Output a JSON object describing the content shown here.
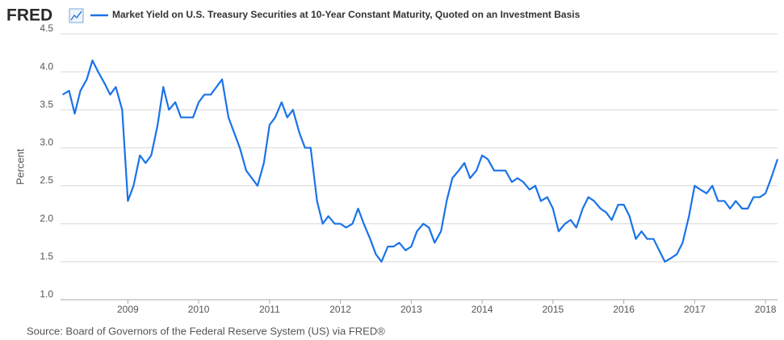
{
  "chart_data": {
    "type": "line",
    "logo": "FRED",
    "ylabel": "Percent",
    "source": "Source: Board of Governors of the Federal Reserve System (US) via FRED®",
    "grid": true,
    "xlim": [
      2008.05,
      2018.17
    ],
    "xticks": [
      2009,
      2010,
      2011,
      2012,
      2013,
      2014,
      2015,
      2016,
      2017,
      2018
    ],
    "ylim": [
      1.0,
      4.5
    ],
    "yticks": [
      {
        "value": 1.0,
        "label": "1.0"
      },
      1.5,
      {
        "value": 2.0,
        "label": "2.0"
      },
      2.5,
      {
        "value": 3.0,
        "label": "3.0"
      },
      3.5,
      {
        "value": 4.0,
        "label": "4.0"
      },
      4.5
    ],
    "x": [
      2008.08,
      2008.17,
      2008.25,
      2008.33,
      2008.42,
      2008.5,
      2008.58,
      2008.67,
      2008.75,
      2008.83,
      2008.92,
      2009.0,
      2009.08,
      2009.17,
      2009.25,
      2009.33,
      2009.42,
      2009.5,
      2009.58,
      2009.67,
      2009.75,
      2009.83,
      2009.92,
      2010.0,
      2010.08,
      2010.17,
      2010.25,
      2010.33,
      2010.42,
      2010.5,
      2010.58,
      2010.67,
      2010.75,
      2010.83,
      2010.92,
      2011.0,
      2011.08,
      2011.17,
      2011.25,
      2011.33,
      2011.42,
      2011.5,
      2011.58,
      2011.67,
      2011.75,
      2011.83,
      2011.92,
      2012.0,
      2012.08,
      2012.17,
      2012.25,
      2012.33,
      2012.42,
      2012.5,
      2012.58,
      2012.67,
      2012.75,
      2012.83,
      2012.92,
      2013.0,
      2013.08,
      2013.17,
      2013.25,
      2013.33,
      2013.42,
      2013.5,
      2013.58,
      2013.67,
      2013.75,
      2013.83,
      2013.92,
      2014.0,
      2014.08,
      2014.17,
      2014.25,
      2014.33,
      2014.42,
      2014.5,
      2014.58,
      2014.67,
      2014.75,
      2014.83,
      2014.92,
      2015.0,
      2015.08,
      2015.17,
      2015.25,
      2015.33,
      2015.42,
      2015.5,
      2015.58,
      2015.67,
      2015.75,
      2015.83,
      2015.92,
      2016.0,
      2016.08,
      2016.17,
      2016.25,
      2016.33,
      2016.42,
      2016.5,
      2016.58,
      2016.67,
      2016.75,
      2016.83,
      2016.92,
      2017.0,
      2017.08,
      2017.17,
      2017.25,
      2017.33,
      2017.42,
      2017.5,
      2017.58,
      2017.67,
      2017.75,
      2017.83,
      2017.92,
      2018.0,
      2018.08,
      2018.17
    ],
    "series": [
      {
        "name": "Market Yield on U.S. Treasury Securities at 10-Year Constant Maturity, Quoted on an Investment Basis",
        "color": "#1a73e8",
        "values": [
          3.7,
          3.75,
          3.45,
          3.75,
          3.9,
          4.15,
          4.0,
          3.85,
          3.7,
          3.8,
          3.5,
          2.3,
          2.5,
          2.9,
          2.8,
          2.9,
          3.3,
          3.8,
          3.5,
          3.6,
          3.4,
          3.4,
          3.4,
          3.6,
          3.7,
          3.7,
          3.8,
          3.9,
          3.4,
          3.2,
          3.0,
          2.7,
          2.6,
          2.5,
          2.8,
          3.3,
          3.4,
          3.6,
          3.4,
          3.5,
          3.2,
          3.0,
          3.0,
          2.3,
          2.0,
          2.1,
          2.0,
          2.0,
          1.95,
          2.0,
          2.2,
          2.0,
          1.8,
          1.6,
          1.5,
          1.7,
          1.7,
          1.75,
          1.65,
          1.7,
          1.9,
          2.0,
          1.95,
          1.75,
          1.9,
          2.3,
          2.6,
          2.7,
          2.8,
          2.6,
          2.7,
          2.9,
          2.85,
          2.7,
          2.7,
          2.7,
          2.55,
          2.6,
          2.55,
          2.45,
          2.5,
          2.3,
          2.35,
          2.2,
          1.9,
          2.0,
          2.05,
          1.95,
          2.2,
          2.35,
          2.3,
          2.2,
          2.15,
          2.05,
          2.25,
          2.25,
          2.1,
          1.8,
          1.9,
          1.8,
          1.8,
          1.65,
          1.5,
          1.55,
          1.6,
          1.75,
          2.1,
          2.5,
          2.45,
          2.4,
          2.5,
          2.3,
          2.3,
          2.2,
          2.3,
          2.2,
          2.2,
          2.35,
          2.35,
          2.4,
          2.6,
          2.85
        ]
      }
    ]
  }
}
